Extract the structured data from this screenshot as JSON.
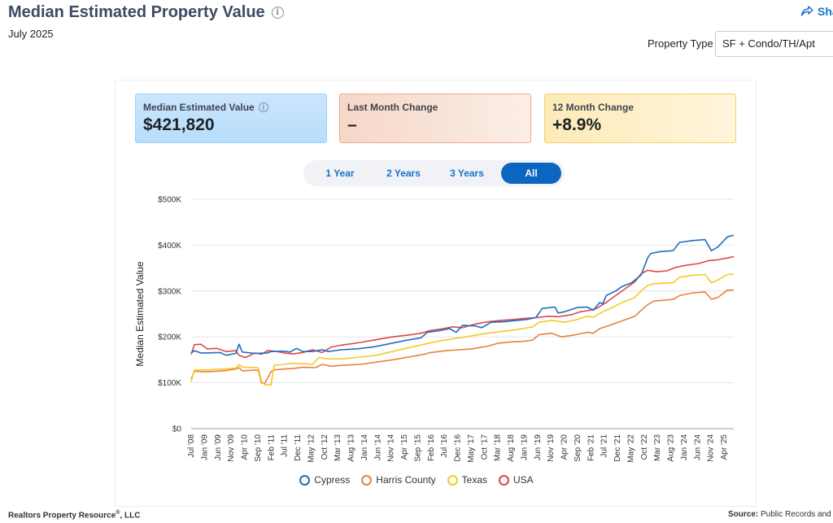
{
  "header": {
    "title": "Median Estimated Property Value",
    "date": "July 2025",
    "share_label": "Sha",
    "property_type_label": "Property Type",
    "property_type_value": "SF + Condo/TH/Apt"
  },
  "stats": [
    {
      "label": "Median Estimated Value",
      "value": "$421,820"
    },
    {
      "label": "Last Month Change",
      "value": "–"
    },
    {
      "label": "12 Month Change",
      "value": "+8.9%"
    }
  ],
  "range_tabs": [
    {
      "label": "1 Year"
    },
    {
      "label": "2 Years"
    },
    {
      "label": "3 Years"
    },
    {
      "label": "All"
    }
  ],
  "active_range": "All",
  "footer": {
    "left_prefix": "Realtors Property Resource",
    "left_sup": "®",
    "left_suffix": ", LLC",
    "right_bold": "Source:",
    "right_text": " Public Records and"
  },
  "colors": {
    "Cypress": "#1f6fb8",
    "Harris County": "#e8823a",
    "Texas": "#f6c928",
    "USA": "#e0454d",
    "active_tab": "#0b66c2"
  },
  "chart_data": {
    "type": "line",
    "ylabel": "Median Estimated Value",
    "ylim": [
      0,
      500000
    ],
    "y_ticks": [
      {
        "value": 0,
        "label": "$0"
      },
      {
        "value": 100000,
        "label": "$100K"
      },
      {
        "value": 200000,
        "label": "$200K"
      },
      {
        "value": 300000,
        "label": "$300K"
      },
      {
        "value": 400000,
        "label": "$400K"
      },
      {
        "value": 500000,
        "label": "$500K"
      }
    ],
    "x_ticks": [
      "Jul '08",
      "Jan '09",
      "Jun '09",
      "Nov '09",
      "Apr '10",
      "Sep '10",
      "Feb '11",
      "Jul '11",
      "Dec '11",
      "May '12",
      "Oct '12",
      "Mar '13",
      "Aug '13",
      "Jan '14",
      "Jun '14",
      "Nov '14",
      "Apr '15",
      "Sep '15",
      "Feb '16",
      "Jul '16",
      "Dec '16",
      "May '17",
      "Oct '17",
      "Mar '18",
      "Aug '18",
      "Jan '19",
      "Jun '19",
      "Nov '19",
      "Apr '20",
      "Sep '20",
      "Feb '21",
      "Jul '21",
      "Dec '21",
      "May '22",
      "Oct '22",
      "Mar '23",
      "Aug '23",
      "Jan '24",
      "Jun '24",
      "Nov '24",
      "Apr '25"
    ],
    "x_range": [
      2008.5,
      2025.5
    ],
    "grid": true,
    "legend_position": "bottom",
    "series": [
      {
        "name": "Cypress",
        "points": [
          [
            2008.5,
            165000
          ],
          [
            2008.6,
            170000
          ],
          [
            2008.8,
            165000
          ],
          [
            2009.0,
            165000
          ],
          [
            2009.4,
            166000
          ],
          [
            2009.6,
            160000
          ],
          [
            2009.9,
            164000
          ],
          [
            2010.0,
            184000
          ],
          [
            2010.1,
            167000
          ],
          [
            2010.5,
            164000
          ],
          [
            2010.9,
            165000
          ],
          [
            2011.0,
            168000
          ],
          [
            2011.4,
            169000
          ],
          [
            2011.6,
            167000
          ],
          [
            2011.8,
            175000
          ],
          [
            2012.0,
            168000
          ],
          [
            2012.3,
            168000
          ],
          [
            2012.6,
            172000
          ],
          [
            2012.8,
            168000
          ],
          [
            2013.2,
            172000
          ],
          [
            2013.7,
            174000
          ],
          [
            2014.2,
            178000
          ],
          [
            2014.7,
            185000
          ],
          [
            2015.2,
            192000
          ],
          [
            2015.7,
            198000
          ],
          [
            2015.9,
            210000
          ],
          [
            2016.3,
            214000
          ],
          [
            2016.6,
            218000
          ],
          [
            2016.8,
            210000
          ],
          [
            2017.0,
            225000
          ],
          [
            2017.4,
            224000
          ],
          [
            2017.6,
            220000
          ],
          [
            2017.9,
            232000
          ],
          [
            2018.3,
            233000
          ],
          [
            2018.7,
            236000
          ],
          [
            2019.0,
            238000
          ],
          [
            2019.3,
            242000
          ],
          [
            2019.5,
            262000
          ],
          [
            2019.9,
            265000
          ],
          [
            2020.0,
            252000
          ],
          [
            2020.2,
            255000
          ],
          [
            2020.6,
            264000
          ],
          [
            2020.9,
            265000
          ],
          [
            2021.1,
            258000
          ],
          [
            2021.3,
            275000
          ],
          [
            2021.4,
            272000
          ],
          [
            2021.5,
            290000
          ],
          [
            2021.8,
            300000
          ],
          [
            2022.0,
            310000
          ],
          [
            2022.3,
            318000
          ],
          [
            2022.6,
            335000
          ],
          [
            2022.8,
            372000
          ],
          [
            2022.9,
            382000
          ],
          [
            2023.2,
            386000
          ],
          [
            2023.6,
            388000
          ],
          [
            2023.8,
            406000
          ],
          [
            2024.2,
            410000
          ],
          [
            2024.6,
            412000
          ],
          [
            2024.8,
            388000
          ],
          [
            2025.0,
            396000
          ],
          [
            2025.3,
            418000
          ],
          [
            2025.5,
            421820
          ]
        ]
      },
      {
        "name": "Harris County",
        "points": [
          [
            2008.5,
            108000
          ],
          [
            2008.6,
            125000
          ],
          [
            2009.0,
            124000
          ],
          [
            2009.5,
            126000
          ],
          [
            2009.9,
            130000
          ],
          [
            2010.0,
            133000
          ],
          [
            2010.1,
            126000
          ],
          [
            2010.6,
            128000
          ],
          [
            2010.7,
            100000
          ],
          [
            2010.8,
            98000
          ],
          [
            2011.0,
            124000
          ],
          [
            2011.1,
            128000
          ],
          [
            2011.4,
            130000
          ],
          [
            2011.7,
            131000
          ],
          [
            2012.0,
            134000
          ],
          [
            2012.4,
            133000
          ],
          [
            2012.6,
            140000
          ],
          [
            2012.9,
            136000
          ],
          [
            2013.2,
            138000
          ],
          [
            2013.8,
            140000
          ],
          [
            2014.3,
            145000
          ],
          [
            2014.8,
            150000
          ],
          [
            2015.3,
            156000
          ],
          [
            2015.8,
            162000
          ],
          [
            2016.0,
            166000
          ],
          [
            2016.5,
            170000
          ],
          [
            2016.9,
            172000
          ],
          [
            2017.3,
            174000
          ],
          [
            2017.8,
            180000
          ],
          [
            2018.1,
            186000
          ],
          [
            2018.5,
            189000
          ],
          [
            2018.9,
            190000
          ],
          [
            2019.2,
            193000
          ],
          [
            2019.4,
            205000
          ],
          [
            2019.8,
            208000
          ],
          [
            2020.1,
            200000
          ],
          [
            2020.5,
            204000
          ],
          [
            2020.9,
            210000
          ],
          [
            2021.1,
            208000
          ],
          [
            2021.3,
            218000
          ],
          [
            2021.6,
            225000
          ],
          [
            2022.0,
            235000
          ],
          [
            2022.4,
            245000
          ],
          [
            2022.6,
            258000
          ],
          [
            2022.8,
            270000
          ],
          [
            2023.0,
            278000
          ],
          [
            2023.6,
            282000
          ],
          [
            2023.8,
            290000
          ],
          [
            2024.2,
            296000
          ],
          [
            2024.6,
            298000
          ],
          [
            2024.8,
            282000
          ],
          [
            2025.0,
            286000
          ],
          [
            2025.3,
            302000
          ],
          [
            2025.5,
            302000
          ]
        ]
      },
      {
        "name": "Texas",
        "points": [
          [
            2008.5,
            102000
          ],
          [
            2008.6,
            128000
          ],
          [
            2009.0,
            128000
          ],
          [
            2009.5,
            130000
          ],
          [
            2009.9,
            132000
          ],
          [
            2010.0,
            140000
          ],
          [
            2010.1,
            134000
          ],
          [
            2010.6,
            133000
          ],
          [
            2010.7,
            104000
          ],
          [
            2010.8,
            96000
          ],
          [
            2011.0,
            95000
          ],
          [
            2011.1,
            138000
          ],
          [
            2011.4,
            140000
          ],
          [
            2011.6,
            142000
          ],
          [
            2012.0,
            142000
          ],
          [
            2012.3,
            140000
          ],
          [
            2012.5,
            155000
          ],
          [
            2012.8,
            152000
          ],
          [
            2013.2,
            152000
          ],
          [
            2013.8,
            156000
          ],
          [
            2014.3,
            160000
          ],
          [
            2014.8,
            168000
          ],
          [
            2015.3,
            176000
          ],
          [
            2015.8,
            184000
          ],
          [
            2016.2,
            190000
          ],
          [
            2016.7,
            196000
          ],
          [
            2017.1,
            200000
          ],
          [
            2017.6,
            206000
          ],
          [
            2018.0,
            210000
          ],
          [
            2018.5,
            214000
          ],
          [
            2018.9,
            218000
          ],
          [
            2019.2,
            222000
          ],
          [
            2019.4,
            232000
          ],
          [
            2019.8,
            236000
          ],
          [
            2020.2,
            232000
          ],
          [
            2020.6,
            238000
          ],
          [
            2020.9,
            245000
          ],
          [
            2021.1,
            243000
          ],
          [
            2021.4,
            255000
          ],
          [
            2021.7,
            264000
          ],
          [
            2022.0,
            275000
          ],
          [
            2022.4,
            286000
          ],
          [
            2022.6,
            300000
          ],
          [
            2022.8,
            312000
          ],
          [
            2023.0,
            316000
          ],
          [
            2023.6,
            318000
          ],
          [
            2023.8,
            330000
          ],
          [
            2024.2,
            334000
          ],
          [
            2024.6,
            336000
          ],
          [
            2024.8,
            318000
          ],
          [
            2025.0,
            324000
          ],
          [
            2025.3,
            336000
          ],
          [
            2025.5,
            337000
          ]
        ]
      },
      {
        "name": "USA",
        "points": [
          [
            2008.5,
            162000
          ],
          [
            2008.6,
            183000
          ],
          [
            2008.8,
            184000
          ],
          [
            2009.0,
            174000
          ],
          [
            2009.3,
            175000
          ],
          [
            2009.6,
            168000
          ],
          [
            2009.9,
            170000
          ],
          [
            2010.0,
            160000
          ],
          [
            2010.2,
            155000
          ],
          [
            2010.5,
            165000
          ],
          [
            2010.7,
            162000
          ],
          [
            2010.9,
            170000
          ],
          [
            2011.2,
            168000
          ],
          [
            2011.4,
            165000
          ],
          [
            2011.7,
            163000
          ],
          [
            2012.0,
            166000
          ],
          [
            2012.3,
            172000
          ],
          [
            2012.6,
            166000
          ],
          [
            2012.9,
            178000
          ],
          [
            2013.2,
            182000
          ],
          [
            2013.8,
            188000
          ],
          [
            2014.3,
            194000
          ],
          [
            2014.8,
            200000
          ],
          [
            2015.3,
            204000
          ],
          [
            2015.7,
            208000
          ],
          [
            2016.0,
            214000
          ],
          [
            2016.4,
            218000
          ],
          [
            2016.7,
            222000
          ],
          [
            2017.0,
            220000
          ],
          [
            2017.4,
            228000
          ],
          [
            2017.8,
            233000
          ],
          [
            2018.2,
            236000
          ],
          [
            2018.6,
            238000
          ],
          [
            2018.9,
            240000
          ],
          [
            2019.3,
            242000
          ],
          [
            2019.7,
            245000
          ],
          [
            2020.0,
            244000
          ],
          [
            2020.4,
            248000
          ],
          [
            2020.7,
            255000
          ],
          [
            2021.0,
            258000
          ],
          [
            2021.2,
            262000
          ],
          [
            2021.5,
            275000
          ],
          [
            2021.8,
            290000
          ],
          [
            2022.1,
            305000
          ],
          [
            2022.4,
            320000
          ],
          [
            2022.6,
            338000
          ],
          [
            2022.8,
            345000
          ],
          [
            2023.1,
            342000
          ],
          [
            2023.4,
            344000
          ],
          [
            2023.7,
            352000
          ],
          [
            2024.0,
            356000
          ],
          [
            2024.4,
            360000
          ],
          [
            2024.7,
            366000
          ],
          [
            2025.0,
            368000
          ],
          [
            2025.3,
            372000
          ],
          [
            2025.5,
            375000
          ]
        ]
      }
    ]
  }
}
